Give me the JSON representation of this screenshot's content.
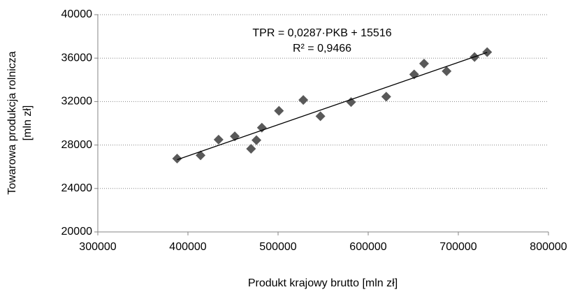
{
  "chart_data": {
    "type": "scatter",
    "x_label": "Produkt krajowy brutto [mln zł]",
    "y_label": [
      "Towarowa  produkcja rolnicza",
      "[mln zł]"
    ],
    "x": [
      388000,
      414000,
      434000,
      452000,
      470000,
      476000,
      482000,
      501000,
      528000,
      547000,
      581000,
      620000,
      651000,
      662000,
      687000,
      718000,
      732000
    ],
    "values": [
      26750,
      27050,
      28500,
      28800,
      27650,
      28450,
      29600,
      31150,
      32150,
      30650,
      31950,
      32450,
      34500,
      35500,
      34800,
      36100,
      36550
    ],
    "color": "#595959",
    "xlim": [
      300000,
      800000
    ],
    "xticks": [
      300000,
      400000,
      500000,
      600000,
      700000,
      800000
    ],
    "ylim": [
      20000,
      40000
    ],
    "yticks": [
      20000,
      24000,
      28000,
      32000,
      36000,
      40000
    ],
    "grid": true,
    "trendline": {
      "slope": 0.0287,
      "intercept": 15516,
      "equation": "TPR = 0,0287·PKB + 15516",
      "r_squared": "R² = 0,9466"
    }
  }
}
